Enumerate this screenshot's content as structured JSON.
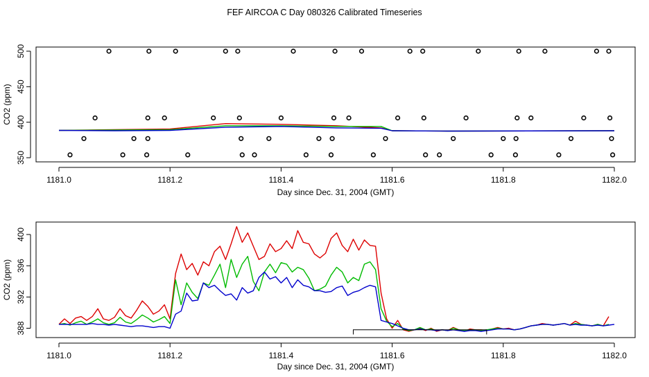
{
  "title": "FEF AIRCOA C  Day 080326  Calibrated Timeseries",
  "colors": {
    "red": "#dd0000",
    "green": "#00bb00",
    "blue": "#0000cc",
    "axis": "#000000"
  },
  "chart_data": [
    {
      "type": "line+scatter",
      "ylabel": "CO2 (ppm)",
      "xlabel": "Day since Dec. 31, 2004 (GMT)",
      "xlim": [
        1181.0,
        1182.0
      ],
      "ylim": [
        350,
        500
      ],
      "xticks": [
        1181.0,
        1181.2,
        1181.4,
        1181.6,
        1181.8,
        1182.0
      ],
      "xtick_labels": [
        "1181.0",
        "1181.2",
        "1181.4",
        "1181.6",
        "1181.8",
        "1182.0"
      ],
      "yticks": [
        350,
        400,
        450,
        500
      ],
      "ytick_labels": [
        "350",
        "400",
        "450",
        "500"
      ],
      "series": [
        {
          "name": "red",
          "color": "#dd0000",
          "x": [
            1181.0,
            1181.1,
            1181.2,
            1181.3,
            1181.4,
            1181.5,
            1181.58,
            1181.6,
            1181.7,
            1182.0
          ],
          "values": [
            388.5,
            389.5,
            390.5,
            398,
            397,
            395,
            392,
            388,
            387.5,
            388
          ]
        },
        {
          "name": "green",
          "color": "#00bb00",
          "x": [
            1181.0,
            1181.1,
            1181.2,
            1181.3,
            1181.4,
            1181.5,
            1181.58,
            1181.6,
            1181.7,
            1182.0
          ],
          "values": [
            388.5,
            389,
            389.5,
            395,
            395,
            394,
            394,
            388,
            387.5,
            388
          ]
        },
        {
          "name": "blue",
          "color": "#0000cc",
          "x": [
            1181.0,
            1181.1,
            1181.2,
            1181.3,
            1181.4,
            1181.5,
            1181.58,
            1181.6,
            1181.7,
            1182.0
          ],
          "values": [
            388.5,
            388,
            388.5,
            393,
            394,
            392,
            391.5,
            388,
            387.5,
            388
          ]
        }
      ],
      "scatter": {
        "marker": "circle",
        "points": [
          [
            1181.02,
            354
          ],
          [
            1181.045,
            377
          ],
          [
            1181.065,
            406
          ],
          [
            1181.09,
            500
          ],
          [
            1181.115,
            354
          ],
          [
            1181.135,
            377
          ],
          [
            1181.158,
            354
          ],
          [
            1181.16,
            377
          ],
          [
            1181.16,
            406
          ],
          [
            1181.162,
            500
          ],
          [
            1181.19,
            406
          ],
          [
            1181.21,
            500
          ],
          [
            1181.232,
            354
          ],
          [
            1181.278,
            406
          ],
          [
            1181.3,
            500
          ],
          [
            1181.322,
            500
          ],
          [
            1181.325,
            406
          ],
          [
            1181.328,
            377
          ],
          [
            1181.33,
            354
          ],
          [
            1181.352,
            354
          ],
          [
            1181.378,
            377
          ],
          [
            1181.4,
            406
          ],
          [
            1181.422,
            500
          ],
          [
            1181.445,
            354
          ],
          [
            1181.468,
            377
          ],
          [
            1181.49,
            354
          ],
          [
            1181.492,
            377
          ],
          [
            1181.495,
            406
          ],
          [
            1181.497,
            500
          ],
          [
            1181.522,
            406
          ],
          [
            1181.545,
            500
          ],
          [
            1181.566,
            354
          ],
          [
            1181.588,
            377
          ],
          [
            1181.61,
            406
          ],
          [
            1181.632,
            500
          ],
          [
            1181.655,
            500
          ],
          [
            1181.657,
            406
          ],
          [
            1181.66,
            354
          ],
          [
            1181.685,
            354
          ],
          [
            1181.71,
            377
          ],
          [
            1181.733,
            406
          ],
          [
            1181.755,
            500
          ],
          [
            1181.778,
            354
          ],
          [
            1181.8,
            377
          ],
          [
            1181.822,
            354
          ],
          [
            1181.823,
            377
          ],
          [
            1181.825,
            406
          ],
          [
            1181.828,
            500
          ],
          [
            1181.85,
            406
          ],
          [
            1181.875,
            500
          ],
          [
            1181.9,
            354
          ],
          [
            1181.922,
            377
          ],
          [
            1181.945,
            406
          ],
          [
            1181.968,
            500
          ],
          [
            1181.99,
            500
          ],
          [
            1181.992,
            406
          ],
          [
            1181.995,
            377
          ],
          [
            1181.997,
            354
          ]
        ]
      }
    },
    {
      "type": "line",
      "ylabel": "CO2 (ppm)",
      "xlabel": "Day since Dec. 31, 2004 (GMT)",
      "xlim": [
        1181.0,
        1182.0
      ],
      "ylim": [
        387.5,
        401
      ],
      "xticks": [
        1181.0,
        1181.2,
        1181.4,
        1181.6,
        1181.8,
        1182.0
      ],
      "xtick_labels": [
        "1181.0",
        "1181.2",
        "1181.4",
        "1181.6",
        "1181.8",
        "1182.0"
      ],
      "yticks": [
        388,
        392,
        396,
        400
      ],
      "ytick_labels": [
        "388",
        "392",
        "396",
        "400"
      ],
      "series": [
        {
          "name": "red",
          "color": "#dd0000",
          "x": [
            1181.0,
            1181.01,
            1181.02,
            1181.03,
            1181.04,
            1181.05,
            1181.06,
            1181.07,
            1181.08,
            1181.09,
            1181.1,
            1181.11,
            1181.12,
            1181.13,
            1181.14,
            1181.15,
            1181.16,
            1181.17,
            1181.18,
            1181.19,
            1181.2,
            1181.21,
            1181.22,
            1181.23,
            1181.24,
            1181.25,
            1181.26,
            1181.27,
            1181.28,
            1181.29,
            1181.3,
            1181.31,
            1181.32,
            1181.33,
            1181.34,
            1181.35,
            1181.36,
            1181.37,
            1181.38,
            1181.39,
            1181.4,
            1181.41,
            1181.42,
            1181.43,
            1181.44,
            1181.45,
            1181.46,
            1181.47,
            1181.48,
            1181.49,
            1181.5,
            1181.51,
            1181.52,
            1181.53,
            1181.54,
            1181.55,
            1181.56,
            1181.57,
            1181.58,
            1181.59,
            1181.6,
            1181.61,
            1181.62,
            1181.63,
            1181.64,
            1181.65,
            1181.66,
            1181.67,
            1181.68,
            1181.69,
            1181.7,
            1181.71,
            1181.72,
            1181.73,
            1181.74,
            1181.75,
            1181.76,
            1181.77,
            1181.78,
            1181.79,
            1181.8,
            1181.81,
            1181.82,
            1181.83,
            1181.84,
            1181.85,
            1181.86,
            1181.87,
            1181.88,
            1181.89,
            1181.9,
            1181.91,
            1181.92,
            1181.93,
            1181.94,
            1181.95,
            1181.96,
            1181.97,
            1181.98,
            1181.99
          ],
          "values": [
            388.5,
            389.2,
            388.6,
            389.3,
            389.5,
            389,
            389.5,
            390.5,
            389.2,
            389,
            389.4,
            390.5,
            389.6,
            389.3,
            390.3,
            391.5,
            390.8,
            389.8,
            390.2,
            391,
            389.2,
            395,
            397.5,
            395.5,
            396.3,
            394.8,
            396.5,
            396,
            397.8,
            398.5,
            396.8,
            398.8,
            401,
            399,
            400.2,
            398.5,
            396.8,
            397.2,
            398.8,
            397.8,
            398.2,
            399.2,
            398.2,
            400.5,
            399,
            398.8,
            397.5,
            397,
            397.6,
            399.5,
            400.2,
            398.6,
            397.8,
            399.4,
            398,
            399.3,
            398.6,
            398.5,
            392.5,
            389.2,
            388,
            389,
            387.8,
            387.6,
            387.8,
            388,
            387.7,
            388,
            387.6,
            387.8,
            387.7,
            388.1,
            387.8,
            387.6,
            387.9,
            387.8,
            387.8,
            387.7,
            387.9,
            388.1,
            387.9,
            388,
            387.8,
            387.9,
            388.1,
            388.3,
            388.4,
            388.6,
            388.5,
            388.4,
            388.5,
            388.6,
            388.4,
            388.9,
            388.5,
            388.4,
            388.3,
            388.5,
            388.3,
            389.5
          ]
        },
        {
          "name": "green",
          "color": "#00bb00",
          "x": [
            1181.0,
            1181.01,
            1181.02,
            1181.03,
            1181.04,
            1181.05,
            1181.06,
            1181.07,
            1181.08,
            1181.09,
            1181.1,
            1181.11,
            1181.12,
            1181.13,
            1181.14,
            1181.15,
            1181.16,
            1181.17,
            1181.18,
            1181.19,
            1181.2,
            1181.21,
            1181.22,
            1181.23,
            1181.24,
            1181.25,
            1181.26,
            1181.27,
            1181.28,
            1181.29,
            1181.3,
            1181.31,
            1181.32,
            1181.33,
            1181.34,
            1181.35,
            1181.36,
            1181.37,
            1181.38,
            1181.39,
            1181.4,
            1181.41,
            1181.42,
            1181.43,
            1181.44,
            1181.45,
            1181.46,
            1181.47,
            1181.48,
            1181.49,
            1181.5,
            1181.51,
            1181.52,
            1181.53,
            1181.54,
            1181.55,
            1181.56,
            1181.57,
            1181.58,
            1181.59,
            1181.6,
            1181.61,
            1181.62,
            1181.63,
            1181.64,
            1181.65,
            1181.66,
            1181.67,
            1181.68,
            1181.69,
            1181.7,
            1181.71,
            1181.72,
            1181.73,
            1181.74,
            1181.75,
            1181.76,
            1181.77,
            1181.78,
            1181.79,
            1181.8,
            1181.81,
            1181.82,
            1181.83,
            1181.84,
            1181.85,
            1181.86,
            1181.87,
            1181.88,
            1181.89,
            1181.9,
            1181.91,
            1181.92,
            1181.93,
            1181.94,
            1181.95,
            1181.96,
            1181.97,
            1181.98,
            1181.99
          ],
          "values": [
            388.5,
            388.6,
            388.4,
            388.7,
            388.9,
            388.5,
            388.8,
            389.2,
            388.7,
            388.5,
            388.7,
            389.4,
            388.8,
            388.6,
            389.1,
            389.7,
            389.3,
            388.8,
            389.1,
            389.5,
            388.6,
            394.2,
            391,
            393.8,
            392.6,
            391.8,
            393.8,
            393.5,
            394.8,
            396.2,
            393.2,
            396.8,
            394.5,
            396.2,
            397.2,
            394,
            392.8,
            395.2,
            396.2,
            395.1,
            396.4,
            396.2,
            395.2,
            395.8,
            395.5,
            394.4,
            392.8,
            393,
            393.4,
            394.8,
            395.8,
            395.2,
            393.8,
            394.5,
            394.1,
            396.2,
            396.5,
            395.5,
            390.5,
            388.9,
            388.2,
            388.6,
            387.9,
            387.7,
            387.8,
            388.1,
            387.8,
            387.9,
            387.7,
            387.8,
            387.7,
            388,
            387.8,
            387.7,
            387.8,
            387.8,
            387.7,
            387.8,
            387.9,
            388,
            387.9,
            387.9,
            387.8,
            387.9,
            388.1,
            388.3,
            388.4,
            388.5,
            388.5,
            388.4,
            388.5,
            388.6,
            388.4,
            388.6,
            388.5,
            388.4,
            388.3,
            388.5,
            388.3,
            388.5
          ]
        },
        {
          "name": "blue",
          "color": "#0000cc",
          "x": [
            1181.0,
            1181.01,
            1181.02,
            1181.03,
            1181.04,
            1181.05,
            1181.06,
            1181.07,
            1181.08,
            1181.09,
            1181.1,
            1181.11,
            1181.12,
            1181.13,
            1181.14,
            1181.15,
            1181.16,
            1181.17,
            1181.18,
            1181.19,
            1181.2,
            1181.21,
            1181.22,
            1181.23,
            1181.24,
            1181.25,
            1181.26,
            1181.27,
            1181.28,
            1181.29,
            1181.3,
            1181.31,
            1181.32,
            1181.33,
            1181.34,
            1181.35,
            1181.36,
            1181.37,
            1181.38,
            1181.39,
            1181.4,
            1181.41,
            1181.42,
            1181.43,
            1181.44,
            1181.45,
            1181.46,
            1181.47,
            1181.48,
            1181.49,
            1181.5,
            1181.51,
            1181.52,
            1181.53,
            1181.54,
            1181.55,
            1181.56,
            1181.57,
            1181.58,
            1181.59,
            1181.6,
            1181.61,
            1181.62,
            1181.63,
            1181.64,
            1181.65,
            1181.66,
            1181.67,
            1181.68,
            1181.69,
            1181.7,
            1181.71,
            1181.72,
            1181.73,
            1181.74,
            1181.75,
            1181.76,
            1181.77,
            1181.78,
            1181.79,
            1181.8,
            1181.81,
            1181.82,
            1181.83,
            1181.84,
            1181.85,
            1181.86,
            1181.87,
            1181.88,
            1181.89,
            1181.9,
            1181.91,
            1181.92,
            1181.93,
            1181.94,
            1181.95,
            1181.96,
            1181.97,
            1181.98,
            1181.99,
            1182.0
          ],
          "values": [
            388.5,
            388.5,
            388.5,
            388.5,
            388.5,
            388.5,
            388.6,
            388.5,
            388.5,
            388.4,
            388.5,
            388.4,
            388.3,
            388.2,
            388.3,
            388.3,
            388.2,
            388.1,
            388.2,
            388.2,
            388,
            389.8,
            390.2,
            392.5,
            391.5,
            391.6,
            393.8,
            393.2,
            393.5,
            392.8,
            392.2,
            392.4,
            391.6,
            393.2,
            392.5,
            392.8,
            394.5,
            395.2,
            394.3,
            394.6,
            393.8,
            394.5,
            393.2,
            394.2,
            393.5,
            393.3,
            392.8,
            392.8,
            392.6,
            392.7,
            393.2,
            393.4,
            392.2,
            392.6,
            392.8,
            393.2,
            393.5,
            393.3,
            389,
            388.8,
            388.6,
            388.3,
            388,
            387.8,
            387.8,
            387.9,
            387.8,
            387.8,
            387.7,
            387.8,
            387.7,
            387.8,
            387.7,
            387.6,
            387.7,
            387.7,
            387.6,
            387.7,
            387.8,
            387.9,
            387.9,
            387.9,
            387.8,
            387.9,
            388.1,
            388.3,
            388.4,
            388.5,
            388.5,
            388.4,
            388.5,
            388.6,
            388.4,
            388.5,
            388.4,
            388.4,
            388.3,
            388.4,
            388.3,
            388.4,
            388.5
          ]
        }
      ],
      "flag_line": {
        "color": "#000000",
        "x": [
          1181.53,
          1181.53,
          1181.77,
          1181.77
        ],
        "values": [
          387.2,
          387.8,
          387.8,
          387.2
        ]
      }
    }
  ]
}
